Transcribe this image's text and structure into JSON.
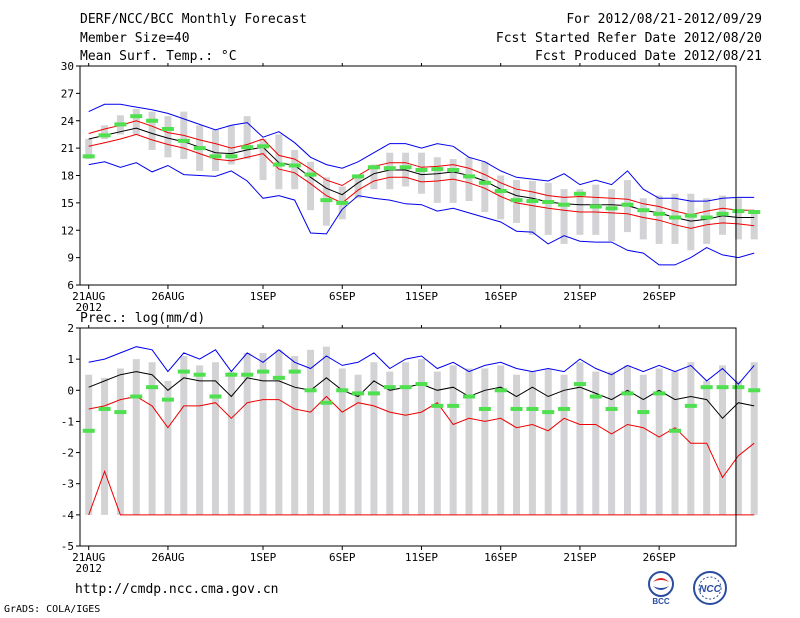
{
  "header": {
    "title": "DERF/NCC/BCC Monthly Forecast",
    "member_size": "Member Size=40",
    "variable": "Mean Surf. Temp.: °C",
    "forecast_period": "For 2012/08/21-2012/09/29",
    "start_date": "Fcst Started Refer Date 2012/08/20",
    "produced_date": "Fcst Produced Date 2012/08/21"
  },
  "footer": {
    "url": "http://cmdp.ncc.cma.gov.cn",
    "credit": "GrADS: COLA/IGES",
    "logo_bcc": "BCC",
    "logo_ncc": "NCC"
  },
  "chart_data": [
    {
      "type": "line",
      "title": "Mean Surf. Temp.: °C",
      "ylim": [
        6,
        30
      ],
      "yticks": [
        6,
        9,
        12,
        15,
        18,
        21,
        24,
        27,
        30
      ],
      "x_ticks": [
        {
          "day": 1,
          "label": "21AUG"
        },
        {
          "day": 6,
          "label": "26AUG"
        },
        {
          "day": 12,
          "label": "1SEP"
        },
        {
          "day": 17,
          "label": "6SEP"
        },
        {
          "day": 22,
          "label": "11SEP"
        },
        {
          "day": 27,
          "label": "16SEP"
        },
        {
          "day": 32,
          "label": "21SEP"
        },
        {
          "day": 37,
          "label": "26SEP"
        }
      ],
      "year_label": "2012",
      "series": [
        {
          "name": "ensemble max",
          "color": "#0000ee",
          "values": [
            25,
            25.8,
            25.8,
            25.5,
            25.2,
            24.8,
            24.2,
            23.6,
            23,
            23.5,
            23.8,
            22.2,
            22.8,
            21.6,
            20,
            19.2,
            18.8,
            19.5,
            20.5,
            21.5,
            21.5,
            21,
            21.5,
            21.2,
            20,
            19.5,
            18.5,
            17.8,
            17.6,
            17.4,
            18.2,
            17,
            17.5,
            17,
            18.5,
            16.5,
            15.5,
            15.5,
            15.2,
            15.2,
            15.5,
            15.6,
            15.6
          ]
        },
        {
          "name": "upper",
          "color": "#ee0000",
          "values": [
            22.6,
            23.1,
            23.5,
            24,
            23.4,
            22.7,
            22.4,
            21.9,
            21.5,
            21,
            21.4,
            22,
            20.2,
            19.8,
            18.7,
            17.5,
            16.9,
            18,
            19,
            19.4,
            19.4,
            18.9,
            19,
            19.2,
            18.8,
            18.1,
            17.2,
            16.5,
            16.2,
            15.8,
            15.6,
            15.7,
            15.6,
            15.5,
            15.4,
            14.9,
            14.6,
            14.1,
            13.7,
            14.1,
            14.4,
            14.2,
            14.2
          ]
        },
        {
          "name": "ensemble mean",
          "color": "#000000",
          "values": [
            22,
            22.4,
            22.8,
            23.2,
            22.6,
            22.1,
            21.7,
            21.1,
            20.5,
            20.4,
            20.8,
            21.1,
            19.4,
            19.1,
            17.8,
            16.6,
            15.9,
            17.2,
            18.2,
            18.6,
            18.6,
            18.1,
            18.2,
            18.4,
            18,
            17.4,
            16.5,
            15.8,
            15.5,
            15.1,
            14.9,
            14.8,
            14.8,
            14.8,
            14.7,
            14.2,
            13.9,
            13.4,
            13,
            13.2,
            13.6,
            13.4,
            13.4
          ]
        },
        {
          "name": "lower",
          "color": "#ee0000",
          "values": [
            21.2,
            21.6,
            22,
            22.5,
            21.9,
            21.4,
            21,
            20.4,
            19.8,
            19.6,
            20,
            20.4,
            18.7,
            18.3,
            17.1,
            15.8,
            15,
            16.4,
            17.4,
            17.8,
            17.8,
            17.3,
            17.4,
            17.6,
            17.2,
            16.6,
            15.7,
            15,
            14.7,
            14.4,
            14.2,
            14,
            14,
            13.9,
            13.8,
            13.4,
            13.1,
            12.6,
            12.2,
            12.6,
            12.8,
            12.7,
            12.5
          ]
        },
        {
          "name": "ensemble min",
          "color": "#0000ee",
          "values": [
            19.2,
            19.5,
            18.9,
            19.4,
            18.4,
            19.1,
            18.1,
            18,
            17.9,
            18.5,
            17.4,
            15.5,
            15.8,
            15.3,
            11.7,
            11.6,
            14.3,
            15.8,
            15.5,
            15.3,
            14.9,
            14.8,
            14.1,
            14.4,
            13.9,
            13.4,
            12.9,
            11.9,
            11.8,
            10.5,
            11.4,
            10.8,
            10.7,
            10.7,
            9.8,
            9.5,
            8.2,
            8.2,
            9,
            10.1,
            9.3,
            9,
            9.5
          ]
        }
      ],
      "box_ranges": [
        [
          19.8,
          22
        ],
        [
          22,
          23.5
        ],
        [
          22.5,
          24.6
        ],
        [
          22.5,
          25.3
        ],
        [
          20.8,
          25
        ],
        [
          20,
          24.5
        ],
        [
          19.8,
          25
        ],
        [
          18.5,
          23.5
        ],
        [
          18.5,
          23
        ],
        [
          19.2,
          23.5
        ],
        [
          19.8,
          24.5
        ],
        [
          17.5,
          22
        ],
        [
          16.5,
          22.5
        ],
        [
          16.5,
          20.8
        ],
        [
          14.2,
          19.5
        ],
        [
          12.5,
          17.8
        ],
        [
          13.2,
          16.8
        ],
        [
          15.5,
          18
        ],
        [
          16.5,
          19.2
        ],
        [
          16.5,
          20.5
        ],
        [
          16.8,
          20.5
        ],
        [
          16,
          20.5
        ],
        [
          15,
          20
        ],
        [
          15,
          19.8
        ],
        [
          15.2,
          20
        ],
        [
          14,
          19.5
        ],
        [
          13.2,
          18
        ],
        [
          12.8,
          17.5
        ],
        [
          11.5,
          17.4
        ],
        [
          11.5,
          17.2
        ],
        [
          10.5,
          16.5
        ],
        [
          11.5,
          16.5
        ],
        [
          11.5,
          17
        ],
        [
          10.8,
          16.5
        ],
        [
          11.8,
          17.5
        ],
        [
          11,
          15.5
        ],
        [
          10.5,
          15.8
        ],
        [
          10.5,
          16
        ],
        [
          9.8,
          16
        ],
        [
          10.5,
          15.5
        ],
        [
          11.5,
          15.8
        ],
        [
          11,
          15.5
        ],
        [
          11,
          14
        ]
      ],
      "observed": [
        20.1,
        22.4,
        23.6,
        24.5,
        24,
        23.1,
        21.8,
        21,
        20.1,
        20.1,
        21.1,
        21.2,
        19.2,
        19.1,
        18.1,
        15.3,
        15,
        17.9,
        18.9,
        18.8,
        18.9,
        18.6,
        18.7,
        18.6,
        17.9,
        17.2,
        16.3,
        15.3,
        15.2,
        15.1,
        14.8,
        16,
        14.6,
        14.4,
        14.8,
        14.2,
        13.8,
        13.4,
        13.6,
        13.4,
        13.8,
        14.1,
        14
      ]
    },
    {
      "type": "line",
      "title": "Prec.: log(mm/d)",
      "ylim": [
        -5,
        2
      ],
      "yticks": [
        -5,
        -4,
        -3,
        -2,
        -1,
        0,
        1,
        2
      ],
      "x_ticks": [
        {
          "day": 1,
          "label": "21AUG"
        },
        {
          "day": 6,
          "label": "26AUG"
        },
        {
          "day": 12,
          "label": "1SEP"
        },
        {
          "day": 17,
          "label": "6SEP"
        },
        {
          "day": 22,
          "label": "11SEP"
        },
        {
          "day": 27,
          "label": "16SEP"
        },
        {
          "day": 32,
          "label": "21SEP"
        },
        {
          "day": 37,
          "label": "26SEP"
        }
      ],
      "year_label": "2012",
      "series": [
        {
          "name": "ensemble max",
          "color": "#0000ee",
          "values": [
            0.9,
            1,
            1.2,
            1.4,
            1.3,
            0.6,
            1.2,
            1,
            1.3,
            0.6,
            1.2,
            0.9,
            1.3,
            0.9,
            0.7,
            1.1,
            0.8,
            0.9,
            1.2,
            0.7,
            1,
            1.1,
            0.7,
            0.9,
            0.6,
            0.8,
            0.9,
            0.7,
            0.6,
            0.7,
            0.6,
            1,
            0.7,
            0.5,
            0.8,
            0.6,
            0.8,
            0.6,
            0.8,
            0.3,
            0.7,
            0.2,
            0.8
          ]
        },
        {
          "name": "ensemble mean",
          "color": "#000000",
          "values": [
            0.1,
            0.3,
            0.5,
            0.6,
            0.5,
            0,
            0.4,
            0.3,
            0.3,
            -0.2,
            0.4,
            0.3,
            0.3,
            0.1,
            0,
            0.4,
            0,
            -0.2,
            0.3,
            0,
            0.1,
            0.2,
            0,
            0.1,
            -0.2,
            0,
            0.1,
            -0.2,
            0.1,
            -0.2,
            0,
            0.1,
            -0.1,
            -0.3,
            0,
            -0.3,
            0,
            -0.3,
            -0.2,
            -0.3,
            -0.9,
            -0.4,
            -0.5
          ]
        },
        {
          "name": "ensemble median",
          "color": "#ee0000",
          "values": [
            -0.6,
            -0.5,
            -0.3,
            -0.2,
            -0.5,
            -1.2,
            -0.5,
            -0.5,
            -0.4,
            -0.9,
            -0.4,
            -0.3,
            -0.3,
            -0.6,
            -0.7,
            -0.2,
            -0.7,
            -0.4,
            -0.5,
            -0.7,
            -0.8,
            -0.7,
            -0.4,
            -1.1,
            -0.9,
            -1,
            -0.9,
            -1.2,
            -1.1,
            -1.3,
            -0.9,
            -1.1,
            -1.1,
            -1.4,
            -1.1,
            -1.2,
            -1.5,
            -1.2,
            -1.7,
            -1.7,
            -2.8,
            -2.1,
            -1.7
          ]
        },
        {
          "name": "ensemble min",
          "color": "#ee0000",
          "values": [
            -4,
            -2.6,
            -4,
            -4,
            -4,
            -4,
            -4,
            -4,
            -4,
            -4,
            -4,
            -4,
            -4,
            -4,
            -4,
            -4,
            -4,
            -4,
            -4,
            -4,
            -4,
            -4,
            -4,
            -4,
            -4,
            -4,
            -4,
            -4,
            -4,
            -4,
            -4,
            -4,
            -4,
            -4,
            -4,
            -4,
            -4,
            -4,
            -4,
            -4,
            -4,
            -4,
            -4
          ]
        }
      ],
      "box_ranges": [
        [
          -4,
          0.5
        ],
        [
          -4,
          0.4
        ],
        [
          -4,
          0.7
        ],
        [
          -4,
          1
        ],
        [
          -4,
          0.9
        ],
        [
          -4,
          0.3
        ],
        [
          -4,
          1.1
        ],
        [
          -4,
          0.8
        ],
        [
          -4,
          0.9
        ],
        [
          -4,
          0.6
        ],
        [
          -4,
          1.2
        ],
        [
          -4,
          1.2
        ],
        [
          -4,
          1.3
        ],
        [
          -4,
          1.1
        ],
        [
          -4,
          1.3
        ],
        [
          -4,
          1.4
        ],
        [
          -4,
          0.7
        ],
        [
          -4,
          0.5
        ],
        [
          -4,
          0.9
        ],
        [
          -4,
          0.6
        ],
        [
          -4,
          0.9
        ],
        [
          -4,
          1
        ],
        [
          -4,
          0.6
        ],
        [
          -4,
          0.8
        ],
        [
          -4,
          0.7
        ],
        [
          -4,
          0.7
        ],
        [
          -4,
          0.8
        ],
        [
          -4,
          0.5
        ],
        [
          -4,
          0.6
        ],
        [
          -4,
          0.7
        ],
        [
          -4,
          0.5
        ],
        [
          -4,
          0.9
        ],
        [
          -4,
          0.6
        ],
        [
          -4,
          0.6
        ],
        [
          -4,
          0.8
        ],
        [
          -4,
          0.5
        ],
        [
          -4,
          0.7
        ],
        [
          -4,
          0.6
        ],
        [
          -4,
          0.9
        ],
        [
          -4,
          0.3
        ],
        [
          -4,
          0.8
        ],
        [
          -4,
          0.3
        ],
        [
          -4,
          0.9
        ]
      ],
      "observed": [
        -1.3,
        -0.6,
        -0.7,
        -0.2,
        0.1,
        -0.3,
        0.6,
        0.5,
        -0.2,
        0.5,
        0.5,
        0.6,
        0.4,
        0.6,
        0,
        -0.4,
        0,
        -0.1,
        -0.1,
        0.1,
        0.1,
        0.2,
        -0.5,
        -0.5,
        -0.2,
        -0.6,
        0,
        -0.6,
        -0.6,
        -0.7,
        -0.6,
        0.2,
        -0.2,
        -0.6,
        -0.1,
        -0.7,
        -0.1,
        -1.3,
        -0.5,
        0.1,
        0.1,
        0.1,
        0
      ]
    }
  ]
}
